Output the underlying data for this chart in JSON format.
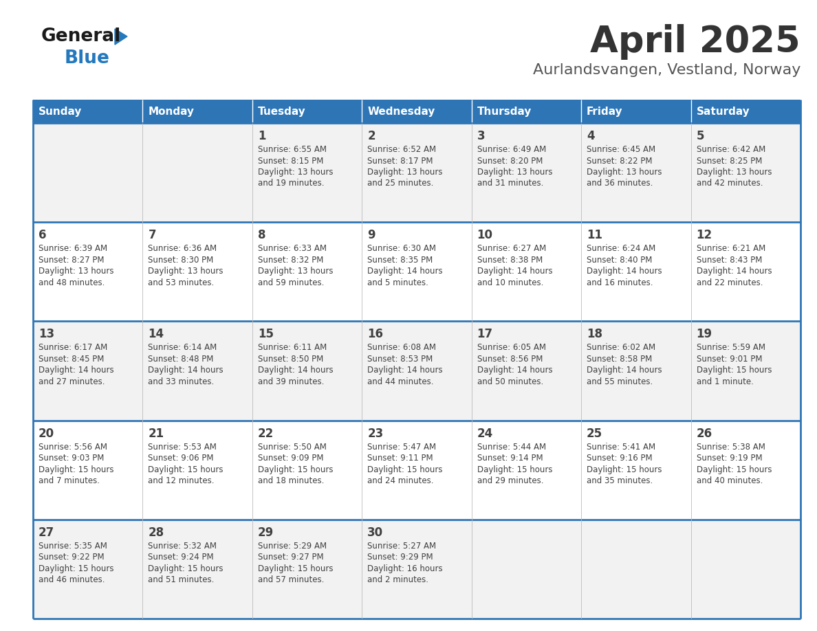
{
  "title": "April 2025",
  "subtitle": "Aurlandsvangen, Vestland, Norway",
  "days_of_week": [
    "Sunday",
    "Monday",
    "Tuesday",
    "Wednesday",
    "Thursday",
    "Friday",
    "Saturday"
  ],
  "header_bg": "#2E75B6",
  "header_text_color": "#FFFFFF",
  "cell_bg_odd": "#F2F2F2",
  "cell_bg_even": "#FFFFFF",
  "row_line_color": "#2E75B6",
  "text_color": "#404040",
  "title_color": "#333333",
  "subtitle_color": "#555555",
  "calendar_data": [
    [
      {
        "day": null,
        "info": null
      },
      {
        "day": null,
        "info": null
      },
      {
        "day": 1,
        "info": "Sunrise: 6:55 AM\nSunset: 8:15 PM\nDaylight: 13 hours\nand 19 minutes."
      },
      {
        "day": 2,
        "info": "Sunrise: 6:52 AM\nSunset: 8:17 PM\nDaylight: 13 hours\nand 25 minutes."
      },
      {
        "day": 3,
        "info": "Sunrise: 6:49 AM\nSunset: 8:20 PM\nDaylight: 13 hours\nand 31 minutes."
      },
      {
        "day": 4,
        "info": "Sunrise: 6:45 AM\nSunset: 8:22 PM\nDaylight: 13 hours\nand 36 minutes."
      },
      {
        "day": 5,
        "info": "Sunrise: 6:42 AM\nSunset: 8:25 PM\nDaylight: 13 hours\nand 42 minutes."
      }
    ],
    [
      {
        "day": 6,
        "info": "Sunrise: 6:39 AM\nSunset: 8:27 PM\nDaylight: 13 hours\nand 48 minutes."
      },
      {
        "day": 7,
        "info": "Sunrise: 6:36 AM\nSunset: 8:30 PM\nDaylight: 13 hours\nand 53 minutes."
      },
      {
        "day": 8,
        "info": "Sunrise: 6:33 AM\nSunset: 8:32 PM\nDaylight: 13 hours\nand 59 minutes."
      },
      {
        "day": 9,
        "info": "Sunrise: 6:30 AM\nSunset: 8:35 PM\nDaylight: 14 hours\nand 5 minutes."
      },
      {
        "day": 10,
        "info": "Sunrise: 6:27 AM\nSunset: 8:38 PM\nDaylight: 14 hours\nand 10 minutes."
      },
      {
        "day": 11,
        "info": "Sunrise: 6:24 AM\nSunset: 8:40 PM\nDaylight: 14 hours\nand 16 minutes."
      },
      {
        "day": 12,
        "info": "Sunrise: 6:21 AM\nSunset: 8:43 PM\nDaylight: 14 hours\nand 22 minutes."
      }
    ],
    [
      {
        "day": 13,
        "info": "Sunrise: 6:17 AM\nSunset: 8:45 PM\nDaylight: 14 hours\nand 27 minutes."
      },
      {
        "day": 14,
        "info": "Sunrise: 6:14 AM\nSunset: 8:48 PM\nDaylight: 14 hours\nand 33 minutes."
      },
      {
        "day": 15,
        "info": "Sunrise: 6:11 AM\nSunset: 8:50 PM\nDaylight: 14 hours\nand 39 minutes."
      },
      {
        "day": 16,
        "info": "Sunrise: 6:08 AM\nSunset: 8:53 PM\nDaylight: 14 hours\nand 44 minutes."
      },
      {
        "day": 17,
        "info": "Sunrise: 6:05 AM\nSunset: 8:56 PM\nDaylight: 14 hours\nand 50 minutes."
      },
      {
        "day": 18,
        "info": "Sunrise: 6:02 AM\nSunset: 8:58 PM\nDaylight: 14 hours\nand 55 minutes."
      },
      {
        "day": 19,
        "info": "Sunrise: 5:59 AM\nSunset: 9:01 PM\nDaylight: 15 hours\nand 1 minute."
      }
    ],
    [
      {
        "day": 20,
        "info": "Sunrise: 5:56 AM\nSunset: 9:03 PM\nDaylight: 15 hours\nand 7 minutes."
      },
      {
        "day": 21,
        "info": "Sunrise: 5:53 AM\nSunset: 9:06 PM\nDaylight: 15 hours\nand 12 minutes."
      },
      {
        "day": 22,
        "info": "Sunrise: 5:50 AM\nSunset: 9:09 PM\nDaylight: 15 hours\nand 18 minutes."
      },
      {
        "day": 23,
        "info": "Sunrise: 5:47 AM\nSunset: 9:11 PM\nDaylight: 15 hours\nand 24 minutes."
      },
      {
        "day": 24,
        "info": "Sunrise: 5:44 AM\nSunset: 9:14 PM\nDaylight: 15 hours\nand 29 minutes."
      },
      {
        "day": 25,
        "info": "Sunrise: 5:41 AM\nSunset: 9:16 PM\nDaylight: 15 hours\nand 35 minutes."
      },
      {
        "day": 26,
        "info": "Sunrise: 5:38 AM\nSunset: 9:19 PM\nDaylight: 15 hours\nand 40 minutes."
      }
    ],
    [
      {
        "day": 27,
        "info": "Sunrise: 5:35 AM\nSunset: 9:22 PM\nDaylight: 15 hours\nand 46 minutes."
      },
      {
        "day": 28,
        "info": "Sunrise: 5:32 AM\nSunset: 9:24 PM\nDaylight: 15 hours\nand 51 minutes."
      },
      {
        "day": 29,
        "info": "Sunrise: 5:29 AM\nSunset: 9:27 PM\nDaylight: 15 hours\nand 57 minutes."
      },
      {
        "day": 30,
        "info": "Sunrise: 5:27 AM\nSunset: 9:29 PM\nDaylight: 16 hours\nand 2 minutes."
      },
      {
        "day": null,
        "info": null
      },
      {
        "day": null,
        "info": null
      },
      {
        "day": null,
        "info": null
      }
    ]
  ],
  "logo_general_color": "#1a1a1a",
  "logo_blue_color": "#2479BD"
}
